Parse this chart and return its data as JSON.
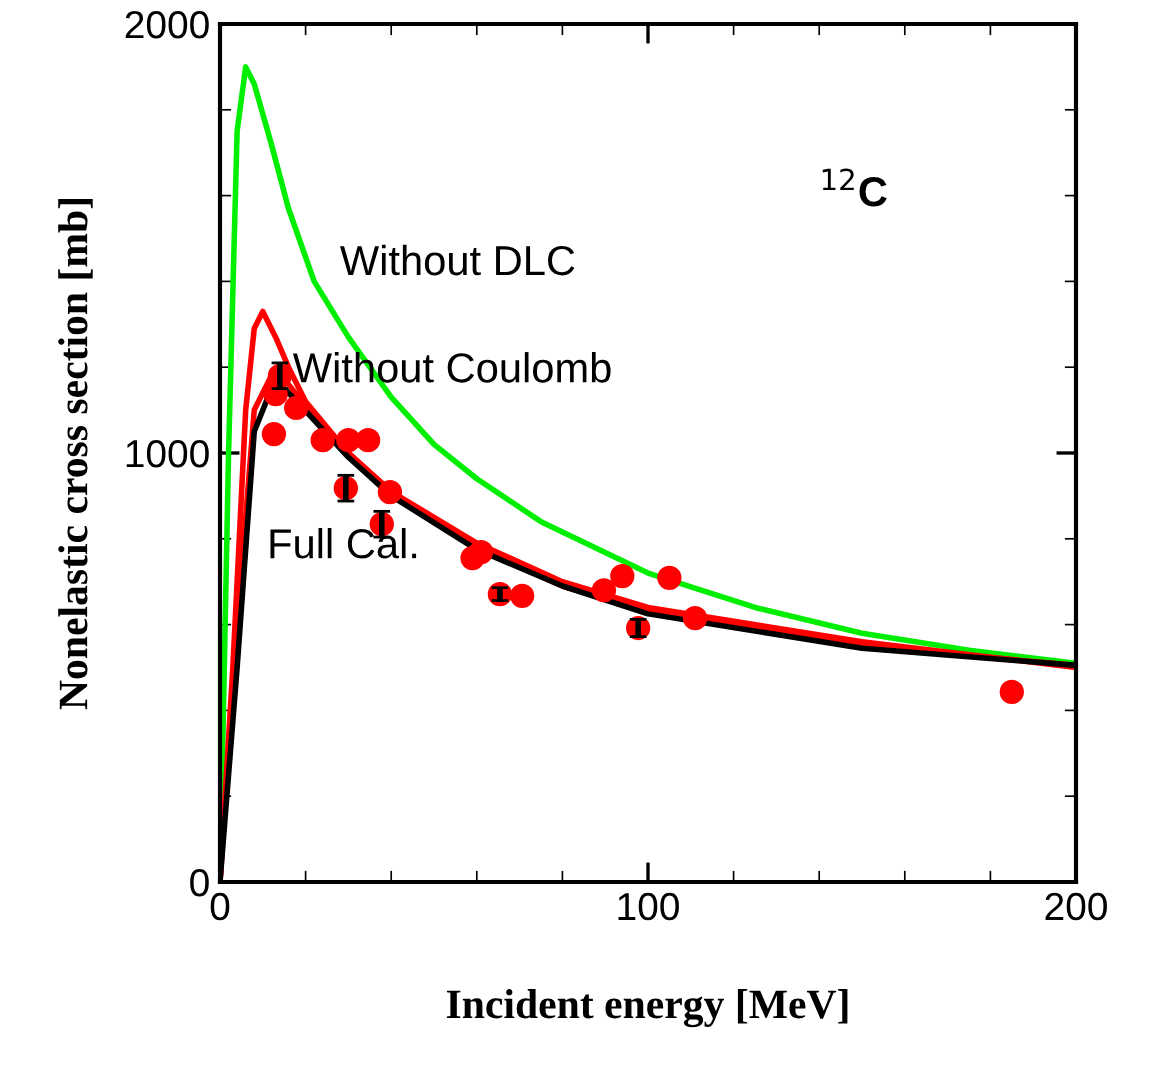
{
  "chart_data": {
    "type": "line",
    "xlabel": "Incident energy [MeV]",
    "ylabel": "Nonelastic cross section [mb]",
    "xlim": [
      0,
      200
    ],
    "ylim": [
      0,
      2000
    ],
    "xticks": [
      0,
      100,
      200
    ],
    "yticks": [
      0,
      1000,
      2000
    ],
    "grid": false,
    "legend": false,
    "annotations": [
      "Without DLC",
      "Without Coulomb",
      "Full Cal.",
      "$^{12}$C"
    ],
    "series": [
      {
        "color": "#00ee00",
        "x": [
          0,
          2,
          4,
          6,
          8,
          12,
          16,
          22,
          30,
          40,
          50,
          60,
          75,
          100,
          125,
          150,
          175,
          200
        ],
        "values": [
          0,
          1000,
          1750,
          1900,
          1860,
          1720,
          1570,
          1400,
          1270,
          1130,
          1020,
          940,
          840,
          720,
          640,
          580,
          540,
          510
        ]
      },
      {
        "color": "#ff0000",
        "x": [
          0,
          3,
          6,
          8,
          10,
          13,
          16,
          20,
          30,
          40,
          60,
          80,
          100,
          150,
          200
        ],
        "values": [
          0,
          500,
          1100,
          1290,
          1330,
          1270,
          1200,
          1120,
          1000,
          910,
          790,
          700,
          640,
          560,
          500
        ]
      },
      {
        "color": "#ff0000",
        "x": [
          0,
          4,
          8,
          12,
          16,
          20,
          30,
          40,
          60,
          80,
          100,
          150,
          200
        ],
        "values": [
          0,
          600,
          1100,
          1180,
          1160,
          1110,
          1000,
          910,
          780,
          690,
          630,
          550,
          505
        ]
      },
      {
        "color": "#000000",
        "x": [
          0,
          4,
          8,
          12,
          14,
          18,
          30,
          40,
          60,
          80,
          100,
          150,
          200
        ],
        "values": [
          0,
          500,
          1050,
          1150,
          1160,
          1120,
          990,
          900,
          775,
          690,
          625,
          545,
          505
        ]
      },
      {
        "type": "scatter",
        "color": "#ff0000",
        "marker": "circle",
        "x": [
          12.6,
          13,
          14,
          17.8,
          24,
          30,
          34.6,
          29.4,
          39.7,
          37.8,
          59,
          61,
          65.4,
          70.6,
          89.7,
          94,
          97.7,
          105,
          111,
          185
        ],
        "values": [
          1044,
          1137,
          1180,
          1105,
          1030,
          1030,
          1030,
          918,
          909,
          834,
          755,
          769,
          671,
          667,
          680,
          713,
          592,
          709,
          615,
          443
        ],
        "errors": [
          null,
          null,
          30,
          null,
          null,
          null,
          null,
          30,
          null,
          30,
          null,
          null,
          15,
          null,
          null,
          null,
          20,
          null,
          null,
          null
        ]
      }
    ]
  }
}
